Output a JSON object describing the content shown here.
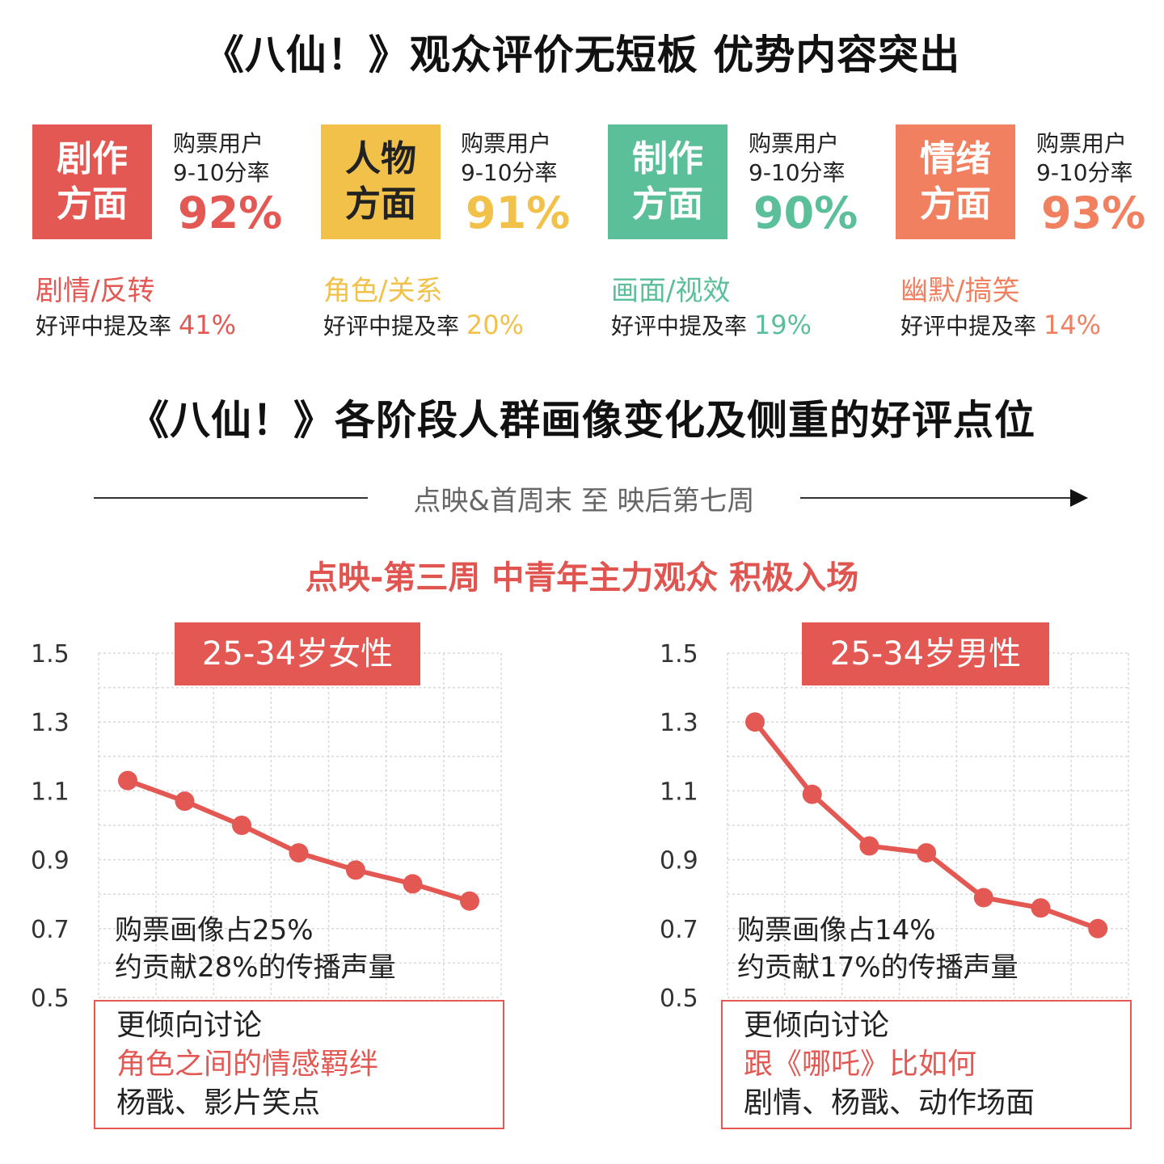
{
  "title_top": "《八仙！》观众评价无短板 优势内容突出",
  "title_bottom": "《八仙！》各阶段人群画像变化及侧重的好评点位",
  "cards": [
    {
      "box_line1": "剧作",
      "box_line2": "方面",
      "label_line1": "购票用户",
      "label_line2": "9-10分率",
      "percent": "92%",
      "color": "#e35853",
      "category": "剧情/反转",
      "mention_label": "好评中提及率",
      "mention_value": "41%"
    },
    {
      "box_line1": "人物",
      "box_line2": "方面",
      "label_line1": "购票用户",
      "label_line2": "9-10分率",
      "percent": "91%",
      "color": "#f2c14a",
      "category": "角色/关系",
      "mention_label": "好评中提及率",
      "mention_value": "20%"
    },
    {
      "box_line1": "制作",
      "box_line2": "方面",
      "label_line1": "购票用户",
      "label_line2": "9-10分率",
      "percent": "90%",
      "color": "#5bbf9a",
      "category": "画面/视效",
      "mention_label": "好评中提及率",
      "mention_value": "19%"
    },
    {
      "box_line1": "情绪",
      "box_line2": "方面",
      "label_line1": "购票用户",
      "label_line2": "9-10分率",
      "percent": "93%",
      "color": "#f08060",
      "category": "幽默/搞笑",
      "mention_label": "好评中提及率",
      "mention_value": "14%"
    }
  ],
  "timeline_label": "点映&首周末 至 映后第七周",
  "stage_label": "点映-第三周 中青年主力观众 积极入场",
  "chart_data": [
    {
      "type": "line",
      "title": "25-34岁女性",
      "y_ticks": [
        "1.5",
        "1.3",
        "1.1",
        "0.9",
        "0.7",
        "0.5"
      ],
      "ylim": [
        0.5,
        1.5
      ],
      "values": [
        1.13,
        1.07,
        1.0,
        0.92,
        0.87,
        0.83,
        0.78
      ],
      "line_color": "#e35853",
      "stat_line1": "购票画像占25%",
      "stat_line2": "约贡献28%的传播声量",
      "focus_line1": "更倾向讨论",
      "focus_line2": "角色之间的情感羁绊",
      "focus_line3": "杨戬、影片笑点"
    },
    {
      "type": "line",
      "title": "25-34岁男性",
      "y_ticks": [
        "1.5",
        "1.3",
        "1.1",
        "0.9",
        "0.7",
        "0.5"
      ],
      "ylim": [
        0.5,
        1.5
      ],
      "values": [
        1.3,
        1.09,
        0.94,
        0.92,
        0.79,
        0.76,
        0.7
      ],
      "line_color": "#e35853",
      "stat_line1": "购票画像占14%",
      "stat_line2": "约贡献17%的传播声量",
      "focus_line1": "更倾向讨论",
      "focus_line2": "跟《哪吒》比如何",
      "focus_line3": "剧情、杨戬、动作场面"
    }
  ]
}
